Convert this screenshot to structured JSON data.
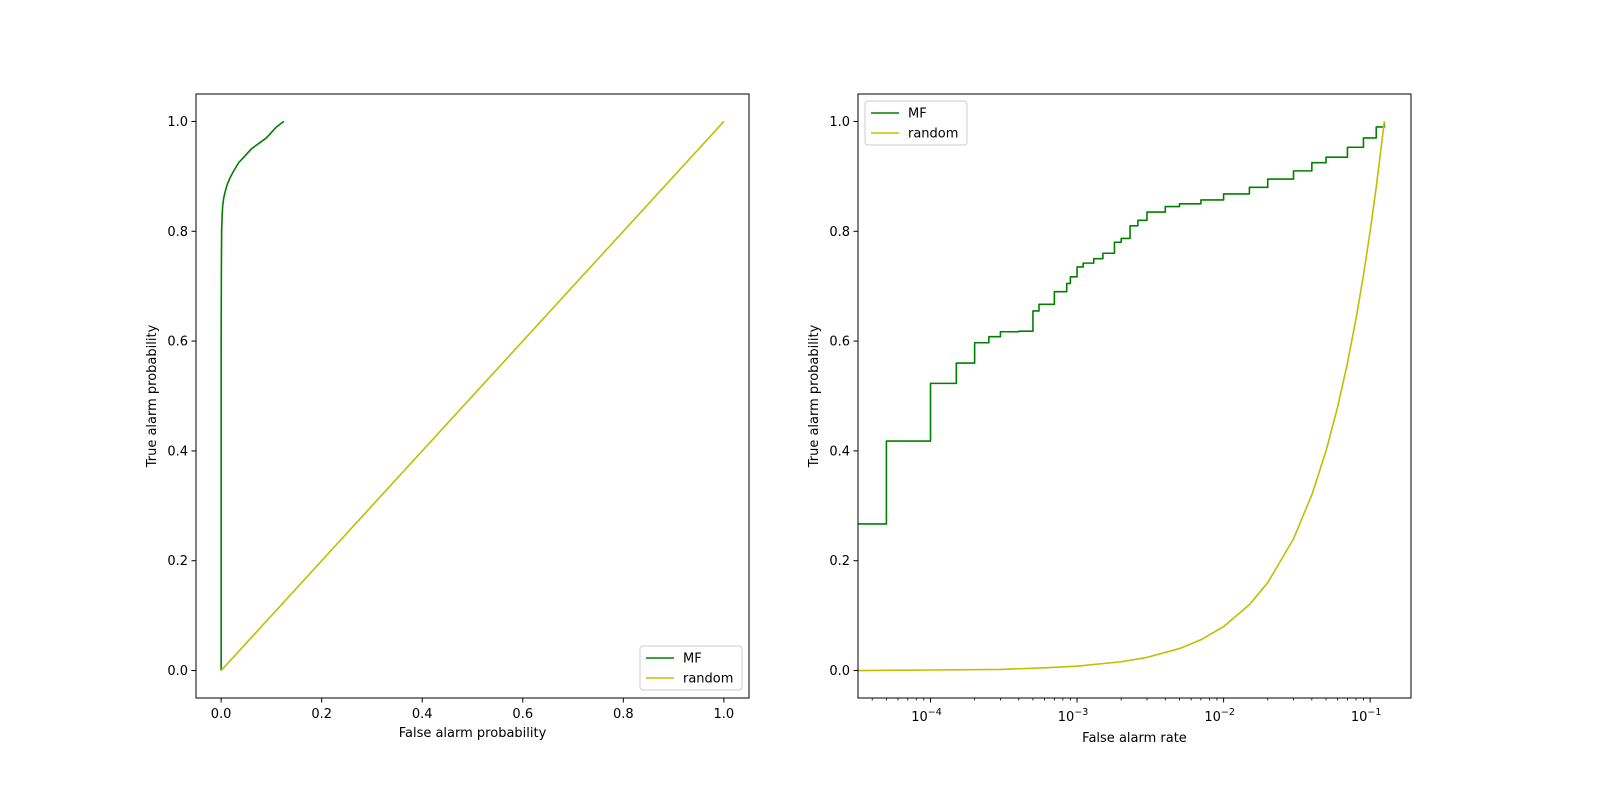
{
  "chart_data": [
    {
      "type": "line",
      "xlabel": "False alarm probability",
      "ylabel": "True alarm probability",
      "xlim": [
        -0.05,
        1.05
      ],
      "ylim": [
        -0.05,
        1.05
      ],
      "x_scale": "linear",
      "xticks": [
        0.0,
        0.2,
        0.4,
        0.6,
        0.8,
        1.0
      ],
      "xtick_labels": [
        "0.0",
        "0.2",
        "0.4",
        "0.6",
        "0.8",
        "1.0"
      ],
      "yticks": [
        0.0,
        0.2,
        0.4,
        0.6,
        0.8,
        1.0
      ],
      "ytick_labels": [
        "0.0",
        "0.2",
        "0.4",
        "0.6",
        "0.8",
        "1.0"
      ],
      "legend_position": "lower-right",
      "series": [
        {
          "name": "MF",
          "color": "#008000",
          "x": [
            0.0,
            0.0,
            0.0005,
            0.001,
            0.002,
            0.003,
            0.005,
            0.008,
            0.012,
            0.018,
            0.025,
            0.035,
            0.045,
            0.06,
            0.075,
            0.09,
            0.1,
            0.11,
            0.12,
            0.125
          ],
          "y": [
            0.0,
            0.6,
            0.74,
            0.8,
            0.83,
            0.845,
            0.86,
            0.872,
            0.885,
            0.898,
            0.91,
            0.925,
            0.935,
            0.95,
            0.96,
            0.97,
            0.98,
            0.99,
            0.997,
            1.0
          ]
        },
        {
          "name": "random",
          "color": "#bfbf00",
          "x": [
            0.0,
            1.0
          ],
          "y": [
            0.0,
            1.0
          ]
        }
      ]
    },
    {
      "type": "line",
      "xlabel": "False alarm rate",
      "ylabel": "True alarm probability",
      "x_scale": "log",
      "xlim": [
        3.2e-05,
        0.19
      ],
      "ylim": [
        -0.05,
        1.05
      ],
      "xticks": [
        0.0001,
        0.001,
        0.01,
        0.1
      ],
      "xtick_labels": [
        {
          "base": "10",
          "exp": "−4"
        },
        {
          "base": "10",
          "exp": "−3"
        },
        {
          "base": "10",
          "exp": "−2"
        },
        {
          "base": "10",
          "exp": "−1"
        }
      ],
      "yticks": [
        0.0,
        0.2,
        0.4,
        0.6,
        0.8,
        1.0
      ],
      "ytick_labels": [
        "0.0",
        "0.2",
        "0.4",
        "0.6",
        "0.8",
        "1.0"
      ],
      "legend_position": "upper-left",
      "series": [
        {
          "name": "MF",
          "color": "#008000",
          "drawstyle": "steps",
          "x": [
            3.2e-05,
            5e-05,
            0.0001,
            0.00015,
            0.0002,
            0.00025,
            0.0003,
            0.0004,
            0.0005,
            0.00055,
            0.0007,
            0.00085,
            0.0009,
            0.001,
            0.0011,
            0.0013,
            0.0015,
            0.0018,
            0.002,
            0.0023,
            0.0026,
            0.003,
            0.004,
            0.005,
            0.007,
            0.01,
            0.015,
            0.02,
            0.03,
            0.04,
            0.05,
            0.07,
            0.09,
            0.11,
            0.125
          ],
          "y": [
            0.267,
            0.418,
            0.523,
            0.56,
            0.597,
            0.608,
            0.617,
            0.618,
            0.655,
            0.667,
            0.69,
            0.705,
            0.717,
            0.735,
            0.742,
            0.75,
            0.76,
            0.78,
            0.787,
            0.81,
            0.82,
            0.835,
            0.845,
            0.85,
            0.857,
            0.868,
            0.88,
            0.895,
            0.91,
            0.925,
            0.935,
            0.953,
            0.97,
            0.99,
            1.0
          ]
        },
        {
          "name": "random",
          "color": "#bfbf00",
          "x": [
            3.2e-05,
            0.0001,
            0.0003,
            0.0006,
            0.001,
            0.002,
            0.003,
            0.005,
            0.007,
            0.01,
            0.015,
            0.02,
            0.03,
            0.04,
            0.05,
            0.06,
            0.07,
            0.08,
            0.09,
            0.1,
            0.11,
            0.125
          ],
          "y": [
            0.0,
            0.001,
            0.002,
            0.005,
            0.008,
            0.016,
            0.024,
            0.04,
            0.056,
            0.08,
            0.12,
            0.16,
            0.24,
            0.32,
            0.4,
            0.48,
            0.56,
            0.64,
            0.72,
            0.8,
            0.88,
            1.0
          ]
        }
      ]
    }
  ]
}
